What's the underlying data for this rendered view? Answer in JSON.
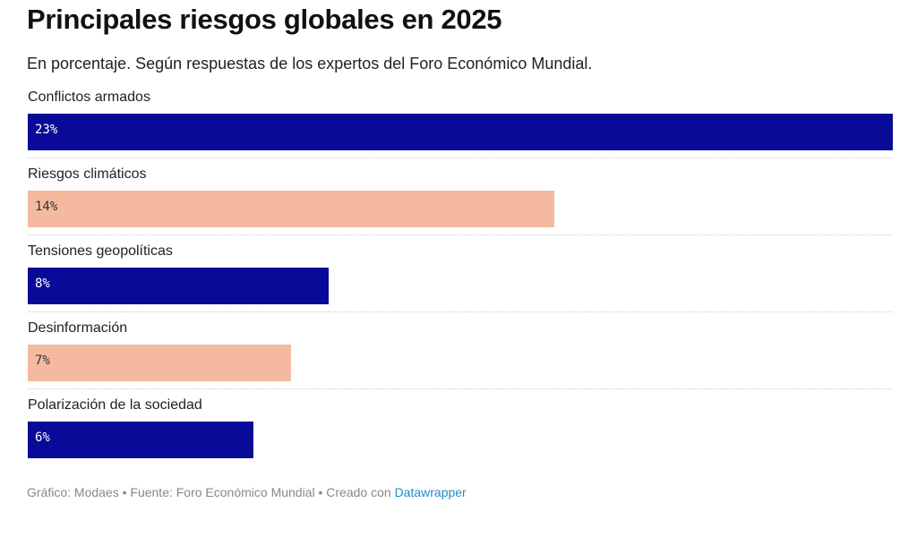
{
  "header": {
    "title": "Principales riesgos globales en 2025",
    "subtitle": "En porcentaje. Según respuestas de los expertos del Foro Económico Mundial."
  },
  "chart_data": {
    "type": "bar",
    "orientation": "horizontal",
    "categories": [
      "Conflictos armados",
      "Riesgos climáticos",
      "Tensiones geopolíticas",
      "Desinformación",
      "Polarización de la sociedad"
    ],
    "values": [
      23,
      14,
      8,
      7,
      6
    ],
    "value_labels": [
      "23%",
      "14%",
      "8%",
      "7%",
      "6%"
    ],
    "bar_colors": [
      "#0a0a99",
      "#f5b99f",
      "#0a0a99",
      "#f5b99f",
      "#0a0a99"
    ],
    "label_colors": [
      "#ffffff",
      "#333333",
      "#ffffff",
      "#333333",
      "#ffffff"
    ],
    "xlim": [
      0,
      23
    ],
    "grid": false,
    "legend": "none"
  },
  "footer": {
    "credits": "Gráfico: Modaes • Fuente: Foro Económico Mundial • Creado con",
    "link_label": "Datawrapper"
  }
}
